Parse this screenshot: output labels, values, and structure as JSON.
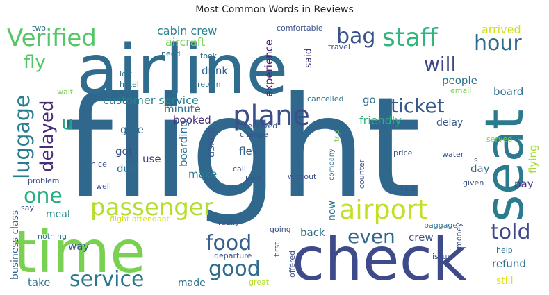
{
  "chart_data": {
    "type": "wordcloud",
    "title": "Most Common Words in Reviews",
    "palette": "viridis",
    "words": [
      {
        "text": "flight",
        "weight": 100,
        "color": "#30678d"
      },
      {
        "text": "airline",
        "weight": 70,
        "color": "#2f6c8e"
      },
      {
        "text": "check",
        "weight": 62,
        "color": "#3e4a89"
      },
      {
        "text": "time",
        "weight": 60,
        "color": "#7ad151"
      },
      {
        "text": "seat",
        "weight": 54,
        "color": "#2b7b8e"
      },
      {
        "text": "plane",
        "weight": 30,
        "color": "#3d4e8a"
      },
      {
        "text": "airport",
        "weight": 28,
        "color": "#c2df23"
      },
      {
        "text": "passenger",
        "weight": 26,
        "color": "#b5de2b"
      },
      {
        "text": "staff",
        "weight": 24,
        "color": "#31b57b"
      },
      {
        "text": "Verified",
        "weight": 24,
        "color": "#55c667"
      },
      {
        "text": "luggage",
        "weight": 23,
        "color": "#287d8e"
      },
      {
        "text": "hour",
        "weight": 22,
        "color": "#2f6c8e"
      },
      {
        "text": "food",
        "weight": 21,
        "color": "#355f8d"
      },
      {
        "text": "one",
        "weight": 21,
        "color": "#27ad81"
      },
      {
        "text": "told",
        "weight": 21,
        "color": "#3f4889"
      },
      {
        "text": "bag",
        "weight": 20,
        "color": "#3b528b"
      },
      {
        "text": "service",
        "weight": 20,
        "color": "#2a788e"
      },
      {
        "text": "good",
        "weight": 20,
        "color": "#2f6c8e"
      },
      {
        "text": "even",
        "weight": 19,
        "color": "#31688e"
      },
      {
        "text": "ticket",
        "weight": 19,
        "color": "#375a8c"
      },
      {
        "text": "delayed",
        "weight": 18,
        "color": "#472c7a"
      },
      {
        "text": "will",
        "weight": 18,
        "color": "#414487"
      },
      {
        "text": "fly",
        "weight": 17,
        "color": "#52c569"
      },
      {
        "text": "u",
        "weight": 16,
        "color": "#21a685"
      },
      {
        "text": "customer service",
        "weight": 12,
        "color": "#26828e"
      },
      {
        "text": "cabin crew",
        "weight": 11,
        "color": "#26828e"
      },
      {
        "text": "aircraft",
        "weight": 11,
        "color": "#75d054"
      },
      {
        "text": "experience",
        "weight": 10,
        "color": "#482475"
      },
      {
        "text": "friendly",
        "weight": 10,
        "color": "#2fb47c"
      },
      {
        "text": "arrived",
        "weight": 10,
        "color": "#d0e11c"
      },
      {
        "text": "people",
        "weight": 10,
        "color": "#2c728e"
      },
      {
        "text": "board",
        "weight": 10,
        "color": "#2d708e"
      },
      {
        "text": "delay",
        "weight": 9,
        "color": "#375b8d"
      },
      {
        "text": "drink",
        "weight": 10,
        "color": "#33638d"
      },
      {
        "text": "minute",
        "weight": 10,
        "color": "#2d708e"
      },
      {
        "text": "booked",
        "weight": 10,
        "color": "#472d7b"
      },
      {
        "text": "gate",
        "weight": 10,
        "color": "#31688e"
      },
      {
        "text": "got",
        "weight": 10,
        "color": "#3c4f8a"
      },
      {
        "text": "use",
        "weight": 10,
        "color": "#433e85"
      },
      {
        "text": "due",
        "weight": 10,
        "color": "#2c738e"
      },
      {
        "text": "asked",
        "weight": 10,
        "color": "#38588c"
      },
      {
        "text": "make",
        "weight": 10,
        "color": "#2a788e"
      },
      {
        "text": "flew",
        "weight": 10,
        "color": "#34618d"
      },
      {
        "text": "day",
        "weight": 10,
        "color": "#31688e"
      },
      {
        "text": "pay",
        "weight": 10,
        "color": "#463480"
      },
      {
        "text": "boarding",
        "weight": 10,
        "color": "#2c728e"
      },
      {
        "text": "flying",
        "weight": 10,
        "color": "#a8db34"
      },
      {
        "text": "go",
        "weight": 9,
        "color": "#2c728e"
      },
      {
        "text": "said",
        "weight": 9,
        "color": "#46327e"
      },
      {
        "text": "meal",
        "weight": 9,
        "color": "#21908d"
      },
      {
        "text": "way",
        "weight": 9,
        "color": "#38588c"
      },
      {
        "text": "back",
        "weight": 10,
        "color": "#2d708e"
      },
      {
        "text": "crew",
        "weight": 10,
        "color": "#3b528b"
      },
      {
        "text": "now",
        "weight": 9,
        "color": "#2a788e"
      },
      {
        "text": "refund",
        "weight": 10,
        "color": "#2c728e"
      },
      {
        "text": "take",
        "weight": 10,
        "color": "#2c728e"
      },
      {
        "text": "made",
        "weight": 9,
        "color": "#2c728e"
      },
      {
        "text": "still",
        "weight": 9,
        "color": "#dde318"
      },
      {
        "text": "business class",
        "weight": 9,
        "color": "#355f8d"
      },
      {
        "text": "comfortable",
        "weight": 7,
        "color": "#3b528b"
      },
      {
        "text": "travel",
        "weight": 7,
        "color": "#3b528b"
      },
      {
        "text": "took",
        "weight": 7,
        "color": "#2c728e"
      },
      {
        "text": "need",
        "weight": 7,
        "color": "#2c728e"
      },
      {
        "text": "left",
        "weight": 7,
        "color": "#2c728e"
      },
      {
        "text": "hotel",
        "weight": 7,
        "color": "#2c728e"
      },
      {
        "text": "return",
        "weight": 7,
        "color": "#2c728e"
      },
      {
        "text": "wait",
        "weight": 7,
        "color": "#75d054"
      },
      {
        "text": "email",
        "weight": 7,
        "color": "#7ad151"
      },
      {
        "text": "cancelled",
        "weight": 7,
        "color": "#2c728e"
      },
      {
        "text": "trip",
        "weight": 7,
        "color": "#7ad151"
      },
      {
        "text": "received",
        "weight": 7,
        "color": "#3b528b"
      },
      {
        "text": "change",
        "weight": 7,
        "color": "#3b528b"
      },
      {
        "text": "served",
        "weight": 7,
        "color": "#7ad151"
      },
      {
        "text": "price",
        "weight": 7,
        "color": "#3b528b"
      },
      {
        "text": "water",
        "weight": 7,
        "color": "#3b528b"
      },
      {
        "text": "s",
        "weight": 7,
        "color": "#3b528b"
      },
      {
        "text": "company",
        "weight": 7,
        "color": "#2c728e"
      },
      {
        "text": "counter",
        "weight": 7,
        "color": "#3b528b"
      },
      {
        "text": "call",
        "weight": 7,
        "color": "#3b528b"
      },
      {
        "text": "paid",
        "weight": 7,
        "color": "#3b528b"
      },
      {
        "text": "without",
        "weight": 7,
        "color": "#3b528b"
      },
      {
        "text": "nice",
        "weight": 7,
        "color": "#3b528b"
      },
      {
        "text": "problem",
        "weight": 7,
        "color": "#3b528b"
      },
      {
        "text": "well",
        "weight": 7,
        "color": "#3b528b"
      },
      {
        "text": "find",
        "weight": 7,
        "color": "#3b528b"
      },
      {
        "text": "given",
        "weight": 7,
        "color": "#3b528b"
      },
      {
        "text": "say",
        "weight": 7,
        "color": "#3b528b"
      },
      {
        "text": "flight attendant",
        "weight": 7,
        "color": "#d8e219"
      },
      {
        "text": "really",
        "weight": 7,
        "color": "#3b528b"
      },
      {
        "text": "nothing",
        "weight": 7,
        "color": "#2c728e"
      },
      {
        "text": "baggage",
        "weight": 7,
        "color": "#2c728e"
      },
      {
        "text": "going",
        "weight": 7,
        "color": "#3b528b"
      },
      {
        "text": "first",
        "weight": 7,
        "color": "#3b528b"
      },
      {
        "text": "money",
        "weight": 7,
        "color": "#3b528b"
      },
      {
        "text": "help",
        "weight": 7,
        "color": "#2c728e"
      },
      {
        "text": "departure",
        "weight": 7,
        "color": "#3b528b"
      },
      {
        "text": "offered",
        "weight": 7,
        "color": "#3b528b"
      },
      {
        "text": "issue",
        "weight": 7,
        "color": "#3b528b"
      },
      {
        "text": "great",
        "weight": 7,
        "color": "#b5de2b"
      },
      {
        "text": "two",
        "weight": 7,
        "color": "#2c728e"
      }
    ]
  }
}
